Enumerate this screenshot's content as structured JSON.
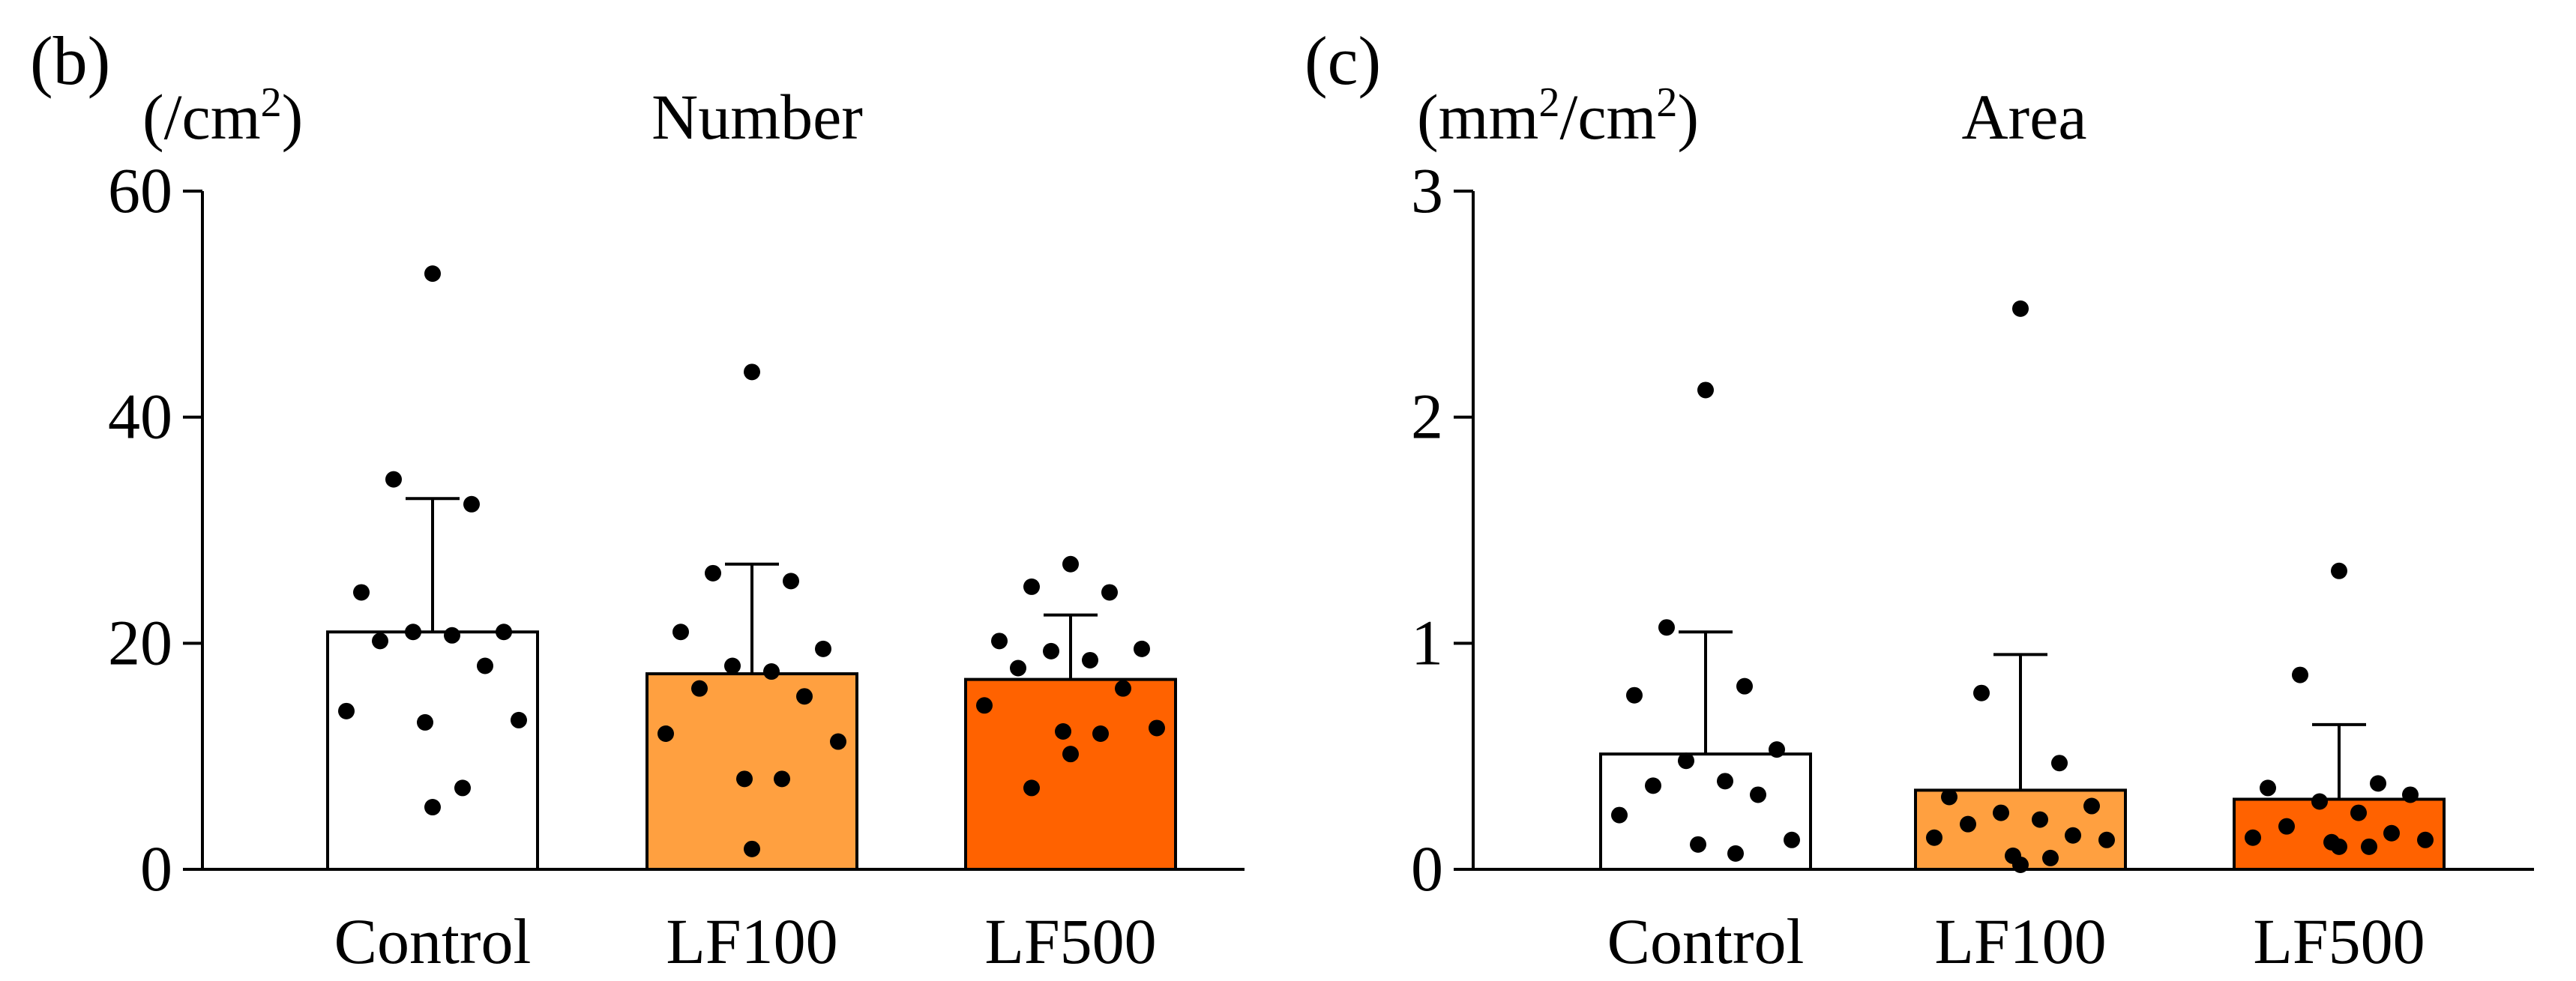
{
  "colors": {
    "control": "#ffffff",
    "lf100": "#FFA040",
    "lf500": "#FF6200",
    "axis": "#000000",
    "points": "#000000"
  },
  "chart_data": [
    {
      "panel": "(b)",
      "type": "bar",
      "title": "Number",
      "unit": {
        "base": "(/cm",
        "sup": "2",
        "tail": ")"
      },
      "categories": [
        "Control",
        "LF100",
        "LF500"
      ],
      "values": [
        21.0,
        17.3,
        16.8
      ],
      "error_upper": [
        32.8,
        27.0,
        22.5
      ],
      "ylim": [
        0,
        60
      ],
      "yticks": [
        0,
        20,
        40,
        60
      ],
      "ytick_labels": [
        "0",
        "20",
        "40",
        "60"
      ],
      "points": [
        [
          52.7,
          34.5,
          32.3,
          24.5,
          21.0,
          21.0,
          20.7,
          20.2,
          18.0,
          14.0,
          13.2,
          13.0,
          7.2,
          5.5
        ],
        [
          44.0,
          26.2,
          25.5,
          21.0,
          19.5,
          18.0,
          17.5,
          16.0,
          15.3,
          12.0,
          11.3,
          8.0,
          8.0,
          1.8
        ],
        [
          27.0,
          25.0,
          24.5,
          20.2,
          19.5,
          19.3,
          18.5,
          17.8,
          16.0,
          14.5,
          12.5,
          12.2,
          12.0,
          10.2,
          7.2
        ]
      ]
    },
    {
      "panel": "(c)",
      "type": "bar",
      "title": "Area",
      "unit": {
        "base": "(mm",
        "sup": "2",
        "mid": "/cm",
        "sup2": "2",
        "tail": ")"
      },
      "categories": [
        "Control",
        "LF100",
        "LF500"
      ],
      "values": [
        0.51,
        0.35,
        0.31
      ],
      "error_upper": [
        1.05,
        0.95,
        0.64
      ],
      "ylim": [
        0,
        3
      ],
      "yticks": [
        0,
        1,
        2,
        3
      ],
      "ytick_labels": [
        "0",
        "1",
        "2",
        "3"
      ],
      "points": [
        [
          2.12,
          1.07,
          0.81,
          0.77,
          0.53,
          0.48,
          0.39,
          0.37,
          0.33,
          0.24,
          0.13,
          0.11,
          0.07
        ],
        [
          2.48,
          0.78,
          0.47,
          0.32,
          0.28,
          0.25,
          0.22,
          0.2,
          0.15,
          0.14,
          0.13,
          0.06,
          0.05,
          0.02
        ],
        [
          1.32,
          0.86,
          0.38,
          0.36,
          0.33,
          0.3,
          0.25,
          0.19,
          0.16,
          0.14,
          0.13,
          0.12,
          0.1,
          0.1
        ]
      ]
    }
  ]
}
